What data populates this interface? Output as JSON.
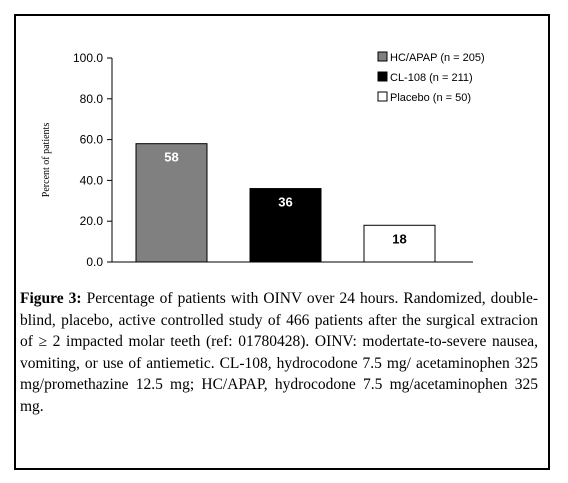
{
  "chart_data": {
    "type": "bar",
    "categories": [
      "HC/APAP (n = 205)",
      "CL-108 (n = 211)",
      "Placebo (n = 50)"
    ],
    "values": [
      58,
      36,
      18
    ],
    "data_labels": [
      "58",
      "36",
      "18"
    ],
    "colors": [
      "#808080",
      "#000000",
      "#ffffff"
    ],
    "label_colors": [
      "#ffffff",
      "#ffffff",
      "#000000"
    ],
    "ylabel": "Percent of patients",
    "ylim": [
      0,
      100
    ],
    "yticks": [
      "0.0",
      "20.0",
      "40.0",
      "60.0",
      "80.0",
      "100.0"
    ],
    "grid": false,
    "legend": {
      "placement": "top-right",
      "entries": [
        "HC/APAP (n = 205)",
        "CL-108 (n = 211)",
        "Placebo (n = 50)"
      ]
    }
  },
  "caption": {
    "label": "Figure 3:",
    "text": "Percentage of patients with OINV over 24 hours. Randomized, double-blind, placebo, active controlled study of 466 patients after the surgical extracion of ≥ 2 impacted molar teeth (ref: 01780428). OINV: modertate-to-severe nausea, vomiting, or use of antiemetic. CL-108, hydrocodone 7.5 mg/ acetaminophen 325 mg/promethazine 12.5 mg; HC/APAP, hydrocodone 7.5 mg/acetaminophen 325 mg."
  }
}
